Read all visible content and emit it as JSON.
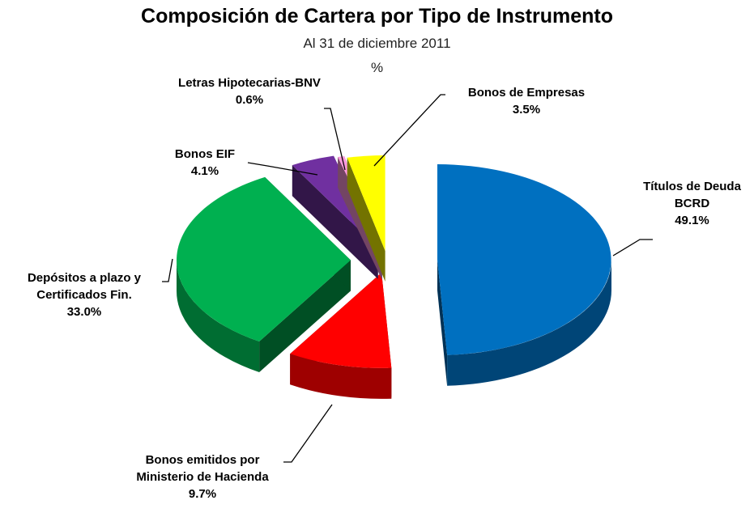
{
  "chart_data": {
    "type": "pie3d",
    "title": "Composición de Cartera por Tipo de Instrumento",
    "subtitle": "Al 31 de diciembre 2011",
    "unit_label": "%",
    "categories": [
      "Títulos de Deuda BCRD",
      "Bonos emitidos por Ministerio de Hacienda",
      "Depósitos a plazo y Certificados Fin.",
      "Bonos EIF",
      "Letras Hipotecarias-BNV",
      "Bonos de Empresas"
    ],
    "values": [
      49.1,
      9.7,
      33.0,
      4.1,
      0.6,
      3.5
    ],
    "value_labels": [
      "49.1%",
      "9.7%",
      "33.0%",
      "4.1%",
      "0.6%",
      "3.5%"
    ],
    "colors": [
      "#0070c0",
      "#ff0000",
      "#00b050",
      "#7030a0",
      "#ff99dd",
      "#ffff00"
    ]
  }
}
